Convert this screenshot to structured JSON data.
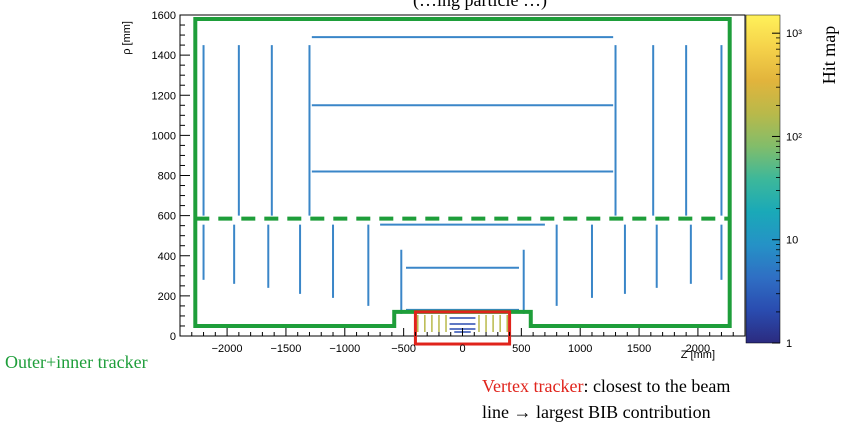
{
  "title_fragment": "(…ing particle …)",
  "chart_data": {
    "type": "heatmap",
    "xlabel": "Z [mm]",
    "ylabel": "ρ [mm]",
    "xlim": [
      -2400,
      2400
    ],
    "ylim": [
      0,
      1600
    ],
    "x_ticks": [
      -2000,
      -1500,
      -1000,
      -500,
      0,
      500,
      1000,
      1500,
      2000
    ],
    "x_tick_labels": [
      "−2000",
      "−1500",
      "−1000",
      "−500",
      "0",
      "500",
      "1000",
      "1500",
      "2000"
    ],
    "y_ticks": [
      0,
      200,
      400,
      600,
      800,
      1000,
      1200,
      1400,
      1600
    ],
    "y_tick_labels": [
      "0",
      "200",
      "400",
      "600",
      "800",
      "1000",
      "1200",
      "1400",
      "1600"
    ],
    "colorbar": {
      "label": "Hit map",
      "scale": "log",
      "range": [
        1,
        1500
      ],
      "ticks": [
        1,
        10,
        100,
        1000
      ],
      "tick_labels": [
        "1",
        "10",
        "10²",
        "10³"
      ],
      "colors": [
        "#2b2b7f",
        "#2a4cb0",
        "#2f6fc4",
        "#2592c6",
        "#1aa9b8",
        "#3db89a",
        "#82bd6a",
        "#b9b94a",
        "#e2b43c",
        "#f5d24a",
        "#fff15a"
      ]
    },
    "hit_segments": {
      "barrel": [
        {
          "z": [
            -1280,
            1280
          ],
          "rho": 1490
        },
        {
          "z": [
            -1280,
            1280
          ],
          "rho": 1150
        },
        {
          "z": [
            -1280,
            1280
          ],
          "rho": 820
        },
        {
          "z": [
            -700,
            700
          ],
          "rho": 555
        },
        {
          "z": [
            -480,
            480
          ],
          "rho": 340
        },
        {
          "z": [
            -480,
            480
          ],
          "rho": 130
        }
      ],
      "endcap_outer": [
        {
          "z": -2200,
          "rho": [
            600,
            1450
          ]
        },
        {
          "z": -1900,
          "rho": [
            600,
            1450
          ]
        },
        {
          "z": -1620,
          "rho": [
            600,
            1450
          ]
        },
        {
          "z": -1300,
          "rho": [
            600,
            1450
          ]
        },
        {
          "z": 1300,
          "rho": [
            600,
            1450
          ]
        },
        {
          "z": 1620,
          "rho": [
            600,
            1450
          ]
        },
        {
          "z": 1900,
          "rho": [
            600,
            1450
          ]
        },
        {
          "z": 2200,
          "rho": [
            600,
            1450
          ]
        }
      ],
      "endcap_inner": [
        {
          "z": -2200,
          "rho": [
            280,
            555
          ]
        },
        {
          "z": -1940,
          "rho": [
            260,
            555
          ]
        },
        {
          "z": -1650,
          "rho": [
            240,
            555
          ]
        },
        {
          "z": -1380,
          "rho": [
            210,
            555
          ]
        },
        {
          "z": -1100,
          "rho": [
            190,
            555
          ]
        },
        {
          "z": -800,
          "rho": [
            150,
            555
          ]
        },
        {
          "z": -520,
          "rho": [
            110,
            430
          ]
        },
        {
          "z": 520,
          "rho": [
            110,
            430
          ]
        },
        {
          "z": 800,
          "rho": [
            150,
            555
          ]
        },
        {
          "z": 1100,
          "rho": [
            190,
            555
          ]
        },
        {
          "z": 1380,
          "rho": [
            210,
            555
          ]
        },
        {
          "z": 1650,
          "rho": [
            240,
            555
          ]
        },
        {
          "z": 1940,
          "rho": [
            260,
            555
          ]
        },
        {
          "z": 2200,
          "rho": [
            280,
            555
          ]
        }
      ],
      "vertex": [
        {
          "z": [
            -110,
            110
          ],
          "rho": 90
        },
        {
          "z": [
            -110,
            110
          ],
          "rho": 60
        },
        {
          "z": [
            -110,
            110
          ],
          "rho": 35
        },
        {
          "z": [
            -70,
            70
          ],
          "rho": 20
        }
      ],
      "vertex_disks_z": [
        -380,
        -320,
        -260,
        -200,
        -140,
        140,
        200,
        260,
        320,
        380
      ]
    },
    "regions": {
      "outer_inner_tracker": {
        "color": "#1e9e3a",
        "outline_points": [
          [
            -2270,
            1580
          ],
          [
            2270,
            1580
          ],
          [
            2270,
            50
          ],
          [
            580,
            50
          ],
          [
            580,
            120
          ],
          [
            -580,
            120
          ],
          [
            -580,
            50
          ],
          [
            -2270,
            50
          ]
        ],
        "divider_rho": 585
      },
      "vertex_tracker": {
        "color": "#e0231b",
        "box_z": [
          -400,
          400
        ],
        "box_rho": [
          -40,
          120
        ]
      }
    }
  },
  "annotations": {
    "outer_label": "Outer+inner tracker",
    "vertex_label_red": "Vertex tracker",
    "vertex_label_rest": ": closest to the beam",
    "vertex_label_line2": "line → largest BIB contribution"
  }
}
